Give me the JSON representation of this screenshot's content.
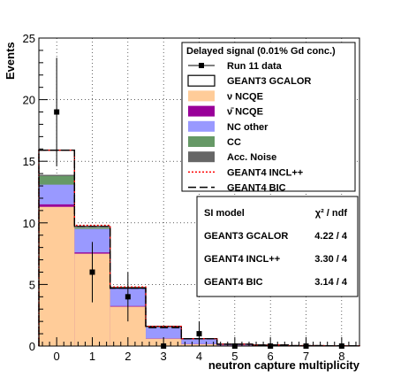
{
  "chart_data": {
    "type": "bar",
    "title": "",
    "xlabel": "neutron capture multiplicity",
    "ylabel": "Events",
    "xlim": [
      -0.5,
      8.5
    ],
    "ylim": [
      0,
      25
    ],
    "x_ticks": [
      "0",
      "1",
      "2",
      "3",
      "4",
      "5",
      "6",
      "7",
      "8"
    ],
    "y_ticks": [
      "0",
      "5",
      "10",
      "15",
      "20",
      "25"
    ],
    "grid": true,
    "categories": [
      0,
      1,
      2,
      3,
      4,
      5,
      6,
      7,
      8
    ],
    "stack": [
      {
        "name": "ν NCQE",
        "color": "#ffcc99",
        "values": [
          11.3,
          7.5,
          3.2,
          0.6,
          0.15,
          0.05,
          0.02,
          0.01,
          0.0
        ]
      },
      {
        "name": "ν̄ NCQE",
        "color": "#990099",
        "values": [
          0.2,
          0.1,
          0.05,
          0.02,
          0.01,
          0.0,
          0.0,
          0.0,
          0.0
        ]
      },
      {
        "name": "NC other",
        "color": "#9999ff",
        "values": [
          1.6,
          1.9,
          1.5,
          0.9,
          0.4,
          0.1,
          0.05,
          0.02,
          0.02
        ]
      },
      {
        "name": "CC",
        "color": "#669966",
        "values": [
          0.7,
          0.1,
          0.05,
          0.02,
          0.01,
          0.0,
          0.0,
          0.0,
          0.0
        ]
      },
      {
        "name": "Acc. Noise",
        "color": "#666666",
        "values": [
          0.1,
          0.0,
          0.0,
          0.0,
          0.0,
          0.0,
          0.0,
          0.0,
          0.0
        ]
      }
    ],
    "series": [
      {
        "name": "GEANT3 GCALOR",
        "style": "solid",
        "color": "#000000",
        "values": [
          15.9,
          9.7,
          4.7,
          1.6,
          0.6,
          0.15,
          0.08,
          0.03,
          0.02
        ]
      },
      {
        "name": "GEANT4 INCL++",
        "style": "dotted",
        "color": "#ff0000",
        "values": [
          15.9,
          9.8,
          4.8,
          1.6,
          0.6,
          0.15,
          0.08,
          0.03,
          0.02
        ]
      },
      {
        "name": "GEANT4 BIC",
        "style": "dashed",
        "color": "#000000",
        "values": [
          15.9,
          9.7,
          4.7,
          1.5,
          0.6,
          0.15,
          0.08,
          0.03,
          0.02
        ]
      }
    ],
    "data": {
      "name": "Run 11 data",
      "x": [
        0,
        1,
        2,
        3,
        4,
        5,
        6,
        7,
        8
      ],
      "y": [
        19,
        6,
        4,
        0,
        1,
        0,
        0,
        0,
        0
      ],
      "err_low": [
        4.4,
        2.45,
        2.0,
        0,
        1.0,
        0,
        0,
        0,
        0
      ],
      "err_high": [
        4.4,
        2.45,
        2.0,
        0,
        1.0,
        0,
        0,
        0,
        0
      ]
    },
    "legend": {
      "title": "Delayed signal (0.01% Gd conc.)",
      "position": "top-right",
      "entries": [
        {
          "label": "Run 11 data",
          "kind": "marker"
        },
        {
          "label": "GEANT3 GCALOR",
          "kind": "box-outline"
        },
        {
          "label": "ν NCQE",
          "kind": "fill",
          "color": "#ffcc99"
        },
        {
          "label": "ν̄ NCQE",
          "kind": "fill",
          "color": "#990099"
        },
        {
          "label": "NC other",
          "kind": "fill",
          "color": "#9999ff"
        },
        {
          "label": "CC",
          "kind": "fill",
          "color": "#669966"
        },
        {
          "label": "Acc. Noise",
          "kind": "fill",
          "color": "#666666"
        },
        {
          "label": "GEANT4 INCL++",
          "kind": "line-dotted",
          "color": "#ff0000"
        },
        {
          "label": "GEANT4 BIC",
          "kind": "line-dashed",
          "color": "#000000"
        }
      ]
    },
    "chi2_table": {
      "header": [
        "SI model",
        "χ² / ndf"
      ],
      "rows": [
        [
          "GEANT3 GCALOR",
          "4.22 / 4"
        ],
        [
          "GEANT4 INCL++",
          "3.30 / 4"
        ],
        [
          "GEANT4 BIC",
          "3.14 / 4"
        ]
      ]
    }
  }
}
